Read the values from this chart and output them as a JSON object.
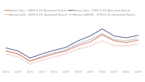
{
  "years": [
    2026,
    2028,
    2030,
    2032,
    2034,
    2036,
    2038,
    2040,
    2042,
    2044,
    2046,
    2048
  ],
  "sq_sers": [
    55,
    50,
    38,
    44,
    50,
    55,
    64,
    70,
    82,
    72,
    69,
    73
  ],
  "an_sers": [
    50,
    45,
    33,
    39,
    45,
    50,
    58,
    63,
    72,
    64,
    63,
    67
  ],
  "sq_strs": [
    60,
    55,
    43,
    50,
    56,
    61,
    72,
    80,
    92,
    80,
    77,
    81
  ],
  "an_strs": [
    55,
    50,
    38,
    46,
    52,
    57,
    67,
    74,
    84,
    74,
    72,
    76
  ],
  "legend": [
    "Status Quo – SERS 6.9% Assumed Return",
    "Annual $1B – SERS 6.9% Assumed Return",
    "Status Quo – STRS 6.9% Assumed Return",
    "Annual $800M – STRS 6.9% Assumed Return"
  ],
  "color_orange": "#E07055",
  "color_blue": "#4A5A82",
  "background": "#ffffff",
  "grid_color": "#e8e8e8",
  "xlim": [
    2025.5,
    2049
  ],
  "ylim": [
    25,
    100
  ]
}
